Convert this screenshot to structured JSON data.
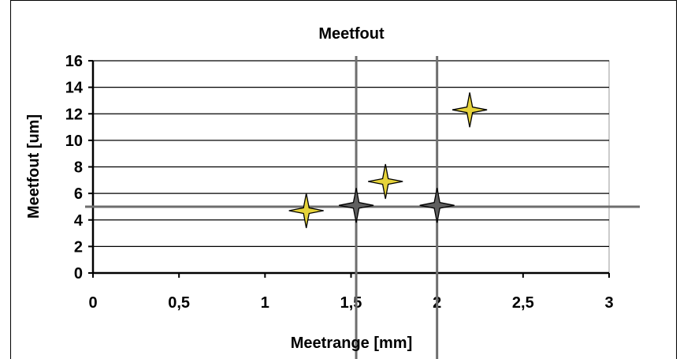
{
  "chart_data": {
    "type": "scatter",
    "title": "Meetfout",
    "xlabel": "Meetrange [mm]",
    "ylabel": "Meetfout [um]",
    "xlim": [
      0,
      3
    ],
    "ylim": [
      0,
      16
    ],
    "x_ticks": [
      "0",
      "0,5",
      "1",
      "1,5",
      "2",
      "2,5",
      "3"
    ],
    "y_ticks": [
      "0",
      "2",
      "4",
      "6",
      "8",
      "10",
      "12",
      "14",
      "16"
    ],
    "grid": "horizontal",
    "series": [
      {
        "color": "#e6d33a",
        "marker": "four-point-star",
        "points": [
          {
            "x": 1.24,
            "y": 4.7
          },
          {
            "x": 1.7,
            "y": 6.9
          },
          {
            "x": 2.19,
            "y": 12.3
          }
        ]
      },
      {
        "color": "#5f5f5f",
        "marker": "four-point-star",
        "points": [
          {
            "x": 1.53,
            "y": 5.1
          },
          {
            "x": 2.0,
            "y": 5.1
          }
        ]
      }
    ],
    "reference_lines": {
      "vertical_x": [
        1.53,
        2.0
      ],
      "horizontal_y": [
        5.0
      ]
    },
    "colors": {
      "gridline": "#000000",
      "reference_line": "#6e6e6e",
      "star_outline": "#000000"
    }
  }
}
